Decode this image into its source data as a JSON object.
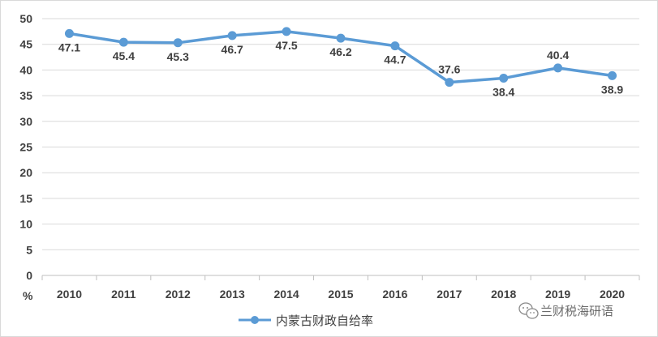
{
  "chart_data": {
    "type": "line",
    "categories": [
      "2010",
      "2011",
      "2012",
      "2013",
      "2014",
      "2015",
      "2016",
      "2017",
      "2018",
      "2019",
      "2020"
    ],
    "series": [
      {
        "name": "内蒙古财政自给率",
        "values": [
          47.1,
          45.4,
          45.3,
          46.7,
          47.5,
          46.2,
          44.7,
          37.6,
          38.4,
          40.4,
          38.9
        ],
        "color": "#5b9bd5"
      }
    ],
    "y_unit": "%",
    "ylim": [
      0,
      50
    ],
    "yticks": [
      0,
      5,
      10,
      15,
      20,
      25,
      30,
      35,
      40,
      45,
      50
    ],
    "grid": true,
    "legend_position": "bottom",
    "data_label_positions": [
      "below",
      "below",
      "below",
      "below",
      "below",
      "below",
      "below",
      "above",
      "below",
      "above",
      "below"
    ]
  },
  "watermark": {
    "text": "兰财税海研语",
    "icon": "wechat-icon"
  }
}
